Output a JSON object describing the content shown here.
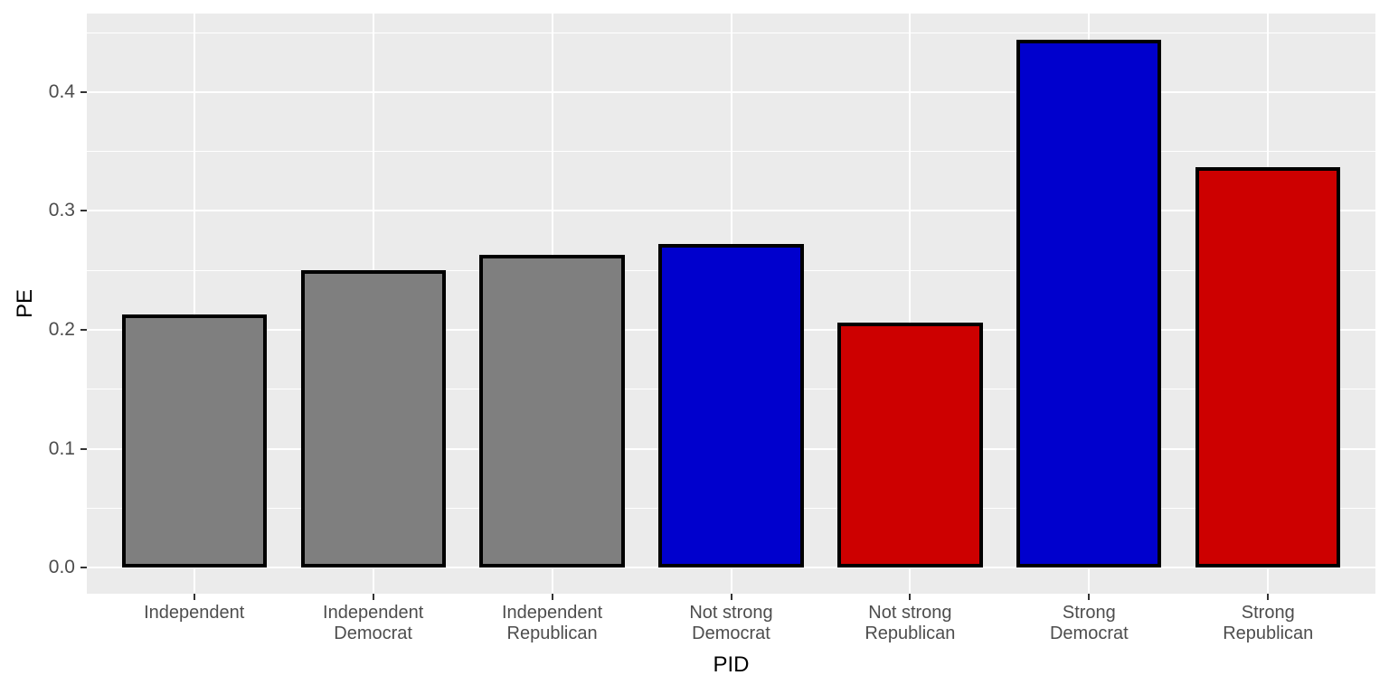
{
  "chart_data": {
    "type": "bar",
    "title": "",
    "xlabel": "PID",
    "ylabel": "PE",
    "categories": [
      "Independent",
      "Independent\nDemocrat",
      "Independent\nRepublican",
      "Not strong\nDemocrat",
      "Not strong\nRepublican",
      "Strong\nDemocrat",
      "Strong\nRepublican"
    ],
    "values": [
      0.213,
      0.25,
      0.263,
      0.272,
      0.206,
      0.444,
      0.337
    ],
    "bar_colors": [
      "#7F7F7F",
      "#7F7F7F",
      "#7F7F7F",
      "#0000CD",
      "#CD0000",
      "#0000CD",
      "#CD0000"
    ],
    "bar_outline_color": "#000000",
    "ylim": [
      -0.022,
      0.466
    ],
    "yticks_major": [
      0.0,
      0.1,
      0.2,
      0.3,
      0.4
    ],
    "ytick_labels": [
      "0.0",
      "0.1",
      "0.2",
      "0.3",
      "0.4"
    ],
    "yticks_minor": [
      0.05,
      0.15,
      0.25,
      0.35,
      0.45
    ],
    "grid": "on",
    "legend": "none",
    "theme": {
      "panel_background": "#EBEBEB",
      "grid_color": "#FFFFFF",
      "tick_label_color": "#4D4D4D",
      "axis_title_color": "#000000",
      "tick_mark_color": "#333333"
    }
  }
}
